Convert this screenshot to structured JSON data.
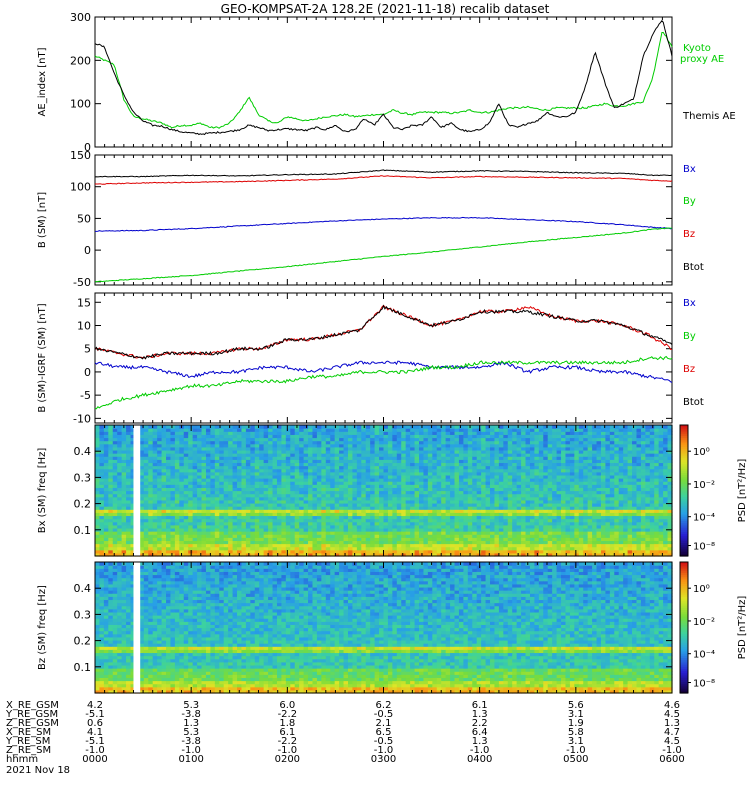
{
  "title": "GEO-KOMPSAT-2A 128.2E (2021-11-18) recalib dataset",
  "colors": {
    "black": "#000000",
    "red": "#dd0000",
    "blue": "#0000cc",
    "green": "#00cc00"
  },
  "colorbar": {
    "label": "PSD [nT²/Hz]",
    "ticks": [
      "10⁰",
      "10⁻²",
      "10⁻⁴",
      "10⁻⁸"
    ]
  },
  "chart_data": [
    {
      "type": "line",
      "ylabel": "AE_index [nT]",
      "ylim": [
        0,
        300
      ],
      "yticks": [
        0,
        100,
        200,
        300
      ],
      "x_hours": [
        0,
        0.1,
        0.2,
        0.3,
        0.4,
        0.5,
        0.6,
        0.7,
        0.8,
        0.9,
        1.0,
        1.1,
        1.2,
        1.3,
        1.4,
        1.5,
        1.6,
        1.7,
        1.8,
        1.9,
        2.0,
        2.1,
        2.2,
        2.3,
        2.4,
        2.5,
        2.6,
        2.7,
        2.8,
        2.9,
        3.0,
        3.1,
        3.2,
        3.3,
        3.4,
        3.5,
        3.6,
        3.7,
        3.8,
        3.9,
        4.0,
        4.1,
        4.2,
        4.3,
        4.4,
        4.5,
        4.6,
        4.7,
        4.8,
        4.9,
        5.0,
        5.1,
        5.2,
        5.3,
        5.4,
        5.5,
        5.6,
        5.7,
        5.8,
        5.9,
        6.0
      ],
      "series": [
        {
          "name": "Kyoto proxy AE",
          "color": "#00cc00",
          "values": [
            210,
            200,
            190,
            110,
            70,
            65,
            60,
            55,
            45,
            50,
            50,
            55,
            45,
            45,
            55,
            80,
            115,
            75,
            60,
            55,
            70,
            65,
            60,
            65,
            70,
            72,
            75,
            70,
            72,
            75,
            75,
            85,
            78,
            75,
            80,
            80,
            80,
            78,
            80,
            85,
            80,
            80,
            85,
            90,
            90,
            92,
            88,
            85,
            90,
            90,
            90,
            90,
            95,
            100,
            95,
            95,
            100,
            105,
            160,
            270,
            230
          ]
        },
        {
          "name": "Themis AE",
          "color": "#000000",
          "values": [
            240,
            230,
            170,
            120,
            80,
            60,
            50,
            48,
            40,
            35,
            32,
            30,
            32,
            34,
            36,
            40,
            50,
            45,
            38,
            40,
            42,
            40,
            38,
            45,
            40,
            50,
            35,
            40,
            65,
            50,
            75,
            45,
            40,
            50,
            50,
            70,
            45,
            55,
            40,
            35,
            40,
            55,
            100,
            50,
            45,
            55,
            60,
            80,
            70,
            70,
            80,
            140,
            220,
            150,
            90,
            100,
            110,
            210,
            260,
            295,
            210
          ]
        }
      ]
    },
    {
      "type": "line",
      "ylabel": "B (SM) [nT]",
      "ylim": [
        -55,
        150
      ],
      "yticks": [
        -50,
        0,
        50,
        100,
        150
      ],
      "x_hours": [
        0,
        0.5,
        1.0,
        1.5,
        2.0,
        2.5,
        3.0,
        3.5,
        4.0,
        4.5,
        5.0,
        5.5,
        5.8,
        6.0
      ],
      "series": [
        {
          "name": "Bx",
          "color": "#0000cc",
          "values": [
            30,
            31,
            34,
            38,
            42,
            46,
            49,
            51,
            51,
            48,
            45,
            40,
            36,
            34
          ]
        },
        {
          "name": "By",
          "color": "#00cc00",
          "values": [
            -50,
            -45,
            -40,
            -33,
            -26,
            -18,
            -10,
            -3,
            5,
            13,
            20,
            27,
            33,
            35
          ]
        },
        {
          "name": "Bz",
          "color": "#dd0000",
          "values": [
            104,
            106,
            107,
            108,
            110,
            112,
            117,
            114,
            116,
            115,
            114,
            113,
            110,
            109
          ]
        },
        {
          "name": "Btot",
          "color": "#000000",
          "values": [
            116,
            116,
            118,
            117,
            119,
            120,
            126,
            123,
            125,
            124,
            122,
            121,
            118,
            118
          ]
        }
      ]
    },
    {
      "type": "line",
      "ylabel": "B (SM)-IGRF (SM) [nT]",
      "ylim": [
        -11,
        17
      ],
      "yticks": [
        -10,
        -5,
        0,
        5,
        10,
        15
      ],
      "x_hours": [
        0,
        0.25,
        0.5,
        0.75,
        1.0,
        1.25,
        1.5,
        1.75,
        2.0,
        2.25,
        2.5,
        2.75,
        3.0,
        3.25,
        3.5,
        3.75,
        4.0,
        4.25,
        4.5,
        4.75,
        5.0,
        5.25,
        5.5,
        5.75,
        6.0
      ],
      "series": [
        {
          "name": "Bx",
          "color": "#0000cc",
          "values": [
            2,
            1,
            1,
            0,
            -1,
            0,
            0,
            1,
            1,
            0,
            1,
            2,
            2,
            2,
            1,
            1,
            1,
            2,
            0,
            1,
            1,
            0,
            0,
            -1,
            -2
          ]
        },
        {
          "name": "By",
          "color": "#00cc00",
          "values": [
            -8,
            -6,
            -5,
            -4,
            -3,
            -3,
            -2,
            -2,
            -2,
            -1,
            -1,
            0,
            0,
            0,
            1,
            1,
            2,
            2,
            2,
            2,
            2,
            2,
            2,
            3,
            3
          ]
        },
        {
          "name": "Bz",
          "color": "#dd0000",
          "values": [
            5,
            4,
            3,
            4,
            4,
            4,
            5,
            5,
            7,
            7,
            8,
            9,
            14,
            12,
            10,
            11,
            13,
            13,
            14,
            12,
            11,
            11,
            10,
            8,
            5
          ]
        },
        {
          "name": "Btot",
          "color": "#000000",
          "values": [
            5,
            4,
            3,
            4,
            4,
            4,
            5,
            5,
            7,
            7,
            8,
            9,
            14,
            12,
            10,
            11,
            13,
            13,
            13,
            12,
            11,
            11,
            10,
            8,
            6
          ]
        }
      ]
    },
    {
      "type": "heatmap",
      "ylabel": "Bx (SM) freq [Hz]",
      "ylim": [
        0,
        0.5
      ],
      "yticks": [
        0.1,
        0.2,
        0.3,
        0.4
      ],
      "gap_hours": [
        0.4,
        0.47
      ]
    },
    {
      "type": "heatmap",
      "ylabel": "Bz (SM) freq [Hz]",
      "ylim": [
        0,
        0.5
      ],
      "yticks": [
        0.1,
        0.2,
        0.3,
        0.4
      ],
      "gap_hours": [
        0.4,
        0.47
      ]
    }
  ],
  "xaxis": {
    "row_labels": [
      "X_RE_GSM",
      "Y_RE_GSM",
      "Z_RE_GSM",
      "X_RE_SM",
      "Y_RE_SM",
      "Z_RE_SM",
      "hhmm",
      "2021 Nov 18"
    ],
    "columns": [
      [
        "4.2",
        "-5.1",
        "0.6",
        "4.1",
        "-5.1",
        "-1.0",
        "0000"
      ],
      [
        "5.3",
        "-3.8",
        "1.3",
        "5.3",
        "-3.8",
        "-1.0",
        "0100"
      ],
      [
        "6.0",
        "-2.2",
        "1.8",
        "6.1",
        "-2.2",
        "-1.0",
        "0200"
      ],
      [
        "6.2",
        "-0.5",
        "2.1",
        "6.5",
        "-0.5",
        "-1.0",
        "0300"
      ],
      [
        "6.1",
        "1.3",
        "2.2",
        "6.4",
        "1.3",
        "-1.0",
        "0400"
      ],
      [
        "5.6",
        "3.1",
        "1.9",
        "5.8",
        "3.1",
        "-1.0",
        "0500"
      ],
      [
        "4.6",
        "4.5",
        "1.3",
        "4.7",
        "4.5",
        "-1.0",
        "0600"
      ]
    ]
  }
}
